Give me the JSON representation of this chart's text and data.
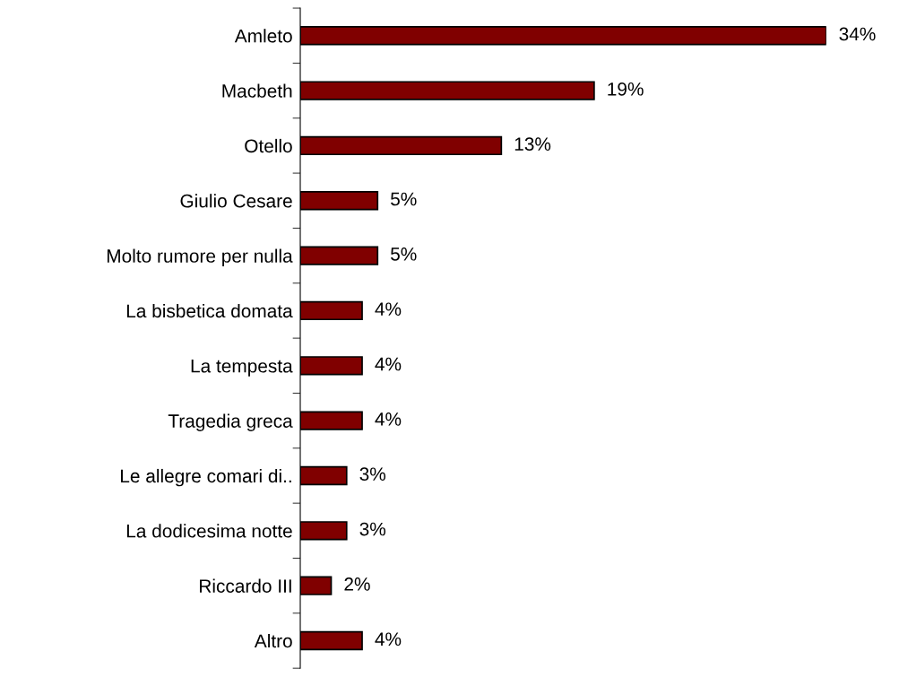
{
  "chart_data": {
    "type": "bar",
    "orientation": "horizontal",
    "categories": [
      "Amleto",
      "Macbeth",
      "Otello",
      "Giulio Cesare",
      "Molto rumore per nulla",
      "La bisbetica domata",
      "La tempesta",
      "Tragedia greca",
      "Le allegre comari di..",
      "La dodicesima notte",
      "Riccardo III",
      "Altro"
    ],
    "values": [
      34,
      19,
      13,
      5,
      5,
      4,
      4,
      4,
      3,
      3,
      2,
      4
    ],
    "value_labels": [
      "34%",
      "19%",
      "13%",
      "5%",
      "5%",
      "4%",
      "4%",
      "4%",
      "3%",
      "3%",
      "2%",
      "4%"
    ],
    "color": "#800000",
    "grid": false,
    "legend": false
  }
}
